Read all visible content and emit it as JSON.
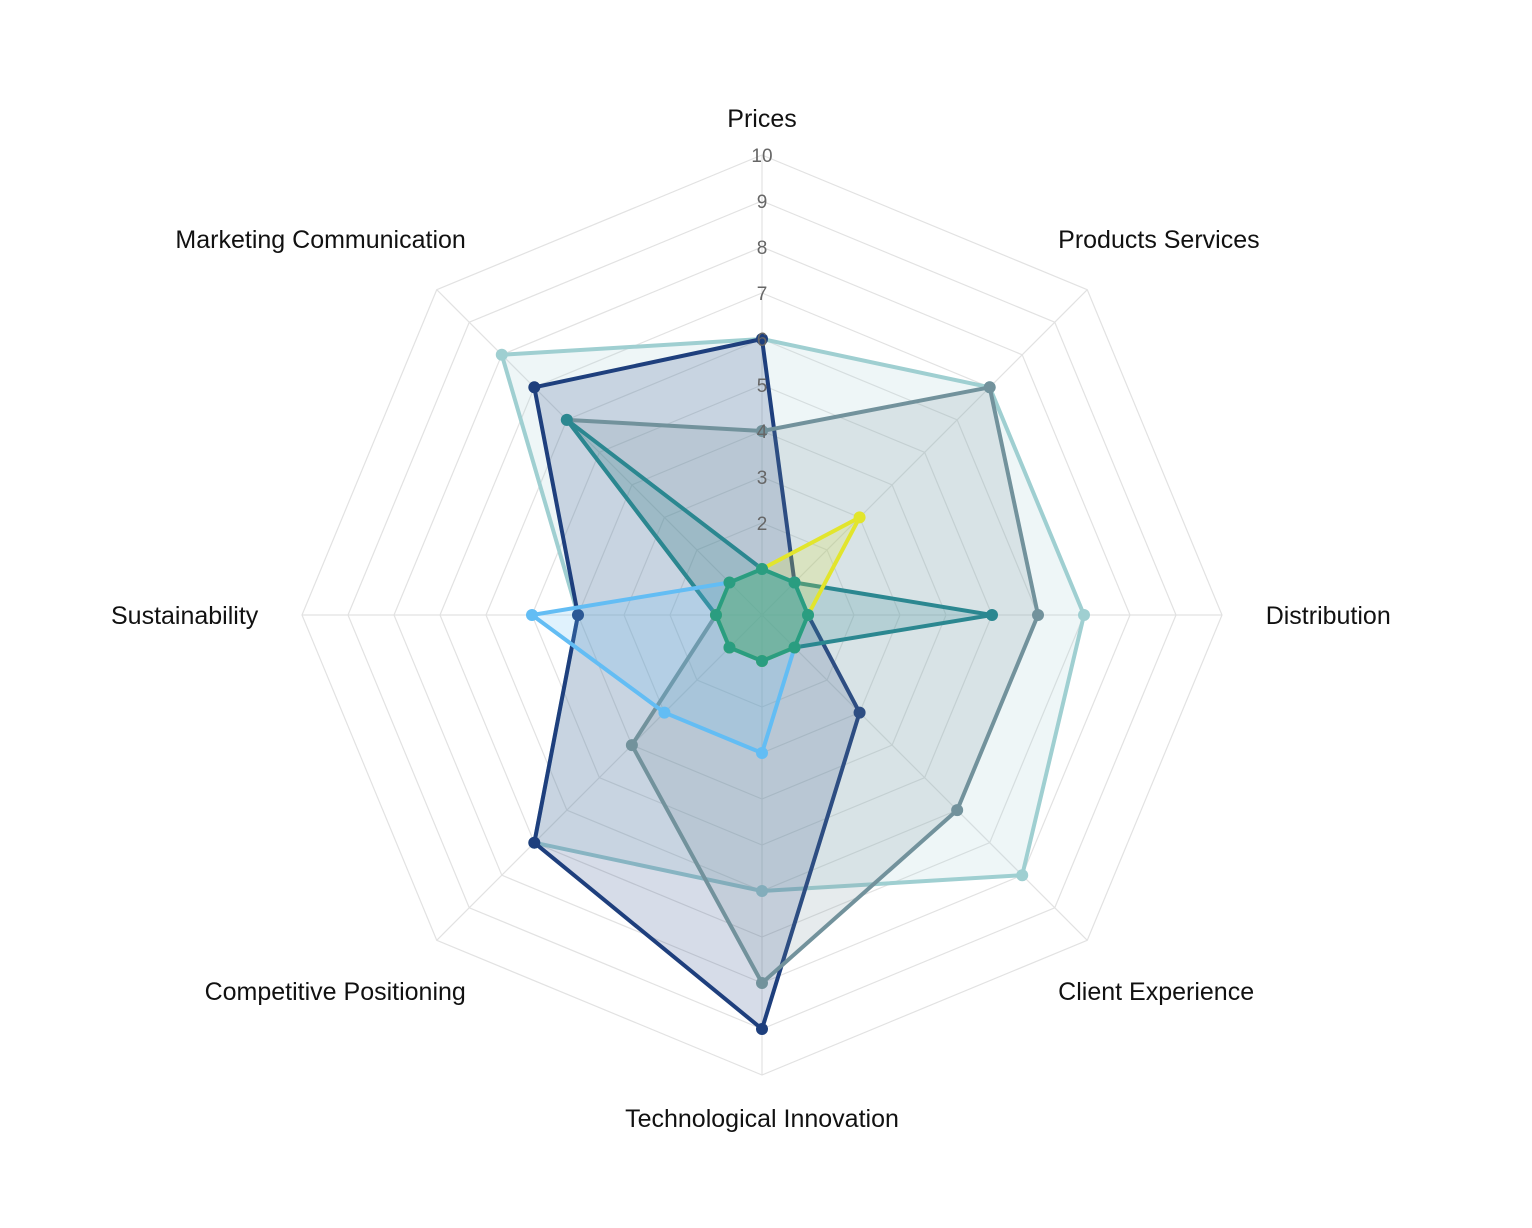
{
  "chart_data": {
    "type": "radar",
    "title": "",
    "axes": [
      "Prices",
      "Products Services",
      "Distribution",
      "Client Experience",
      "Technological Innovation",
      "Competitive Positioning",
      "Sustainability",
      "Marketing Communication"
    ],
    "rlim": [
      0,
      10
    ],
    "ticks": [
      "2",
      "3",
      "4",
      "5",
      "6",
      "7",
      "8",
      "9",
      "10"
    ],
    "tick_values": [
      2,
      3,
      4,
      5,
      6,
      7,
      8,
      9,
      10
    ],
    "grid": true,
    "legend": "none",
    "series": [
      {
        "name": "Series 1",
        "color": "#9fcfd1",
        "fill": "rgba(159,207,209,0.18)",
        "values": [
          6,
          7,
          7,
          8,
          6,
          7,
          4,
          8
        ]
      },
      {
        "name": "Series 2",
        "color": "#1e3f7d",
        "fill": "rgba(30,63,125,0.18)",
        "values": [
          6,
          1,
          1,
          3,
          9,
          7,
          4,
          7
        ]
      },
      {
        "name": "Series 3",
        "color": "#72929c",
        "fill": "rgba(114,146,156,0.18)",
        "values": [
          4,
          7,
          6,
          6,
          8,
          4,
          1,
          6
        ]
      },
      {
        "name": "Series 4",
        "color": "#2b8790",
        "fill": "rgba(43,135,144,0.2)",
        "values": [
          1,
          1,
          5,
          1,
          1,
          1,
          1,
          6
        ]
      },
      {
        "name": "Series 5",
        "color": "#e2e52c",
        "fill": "rgba(226,229,44,0.2)",
        "values": [
          1,
          3,
          1,
          1,
          1,
          1,
          1,
          1
        ]
      },
      {
        "name": "Series 6",
        "color": "#63bdf4",
        "fill": "rgba(99,189,244,0.2)",
        "values": [
          1,
          1,
          1,
          1,
          3,
          3,
          5,
          1
        ]
      },
      {
        "name": "Series 7",
        "color": "#2a9d80",
        "fill": "rgba(42,157,128,0.35)",
        "values": [
          1,
          1,
          1,
          1,
          1,
          1,
          1,
          1
        ]
      }
    ]
  }
}
